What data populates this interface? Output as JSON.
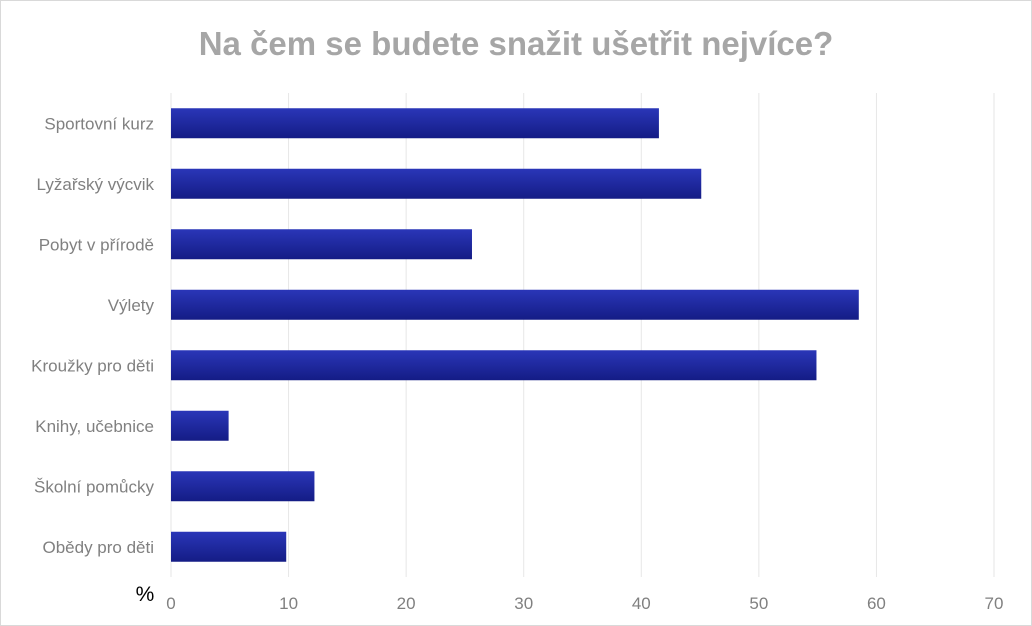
{
  "chart_data": {
    "type": "bar",
    "orientation": "horizontal",
    "title": "Na čem se budete snažit ušetřit nejvíce?",
    "unit_label": "%",
    "categories": [
      "Sportovní kurz",
      "Lyžařský výcvik",
      "Pobyt v přírodě",
      "Výlety",
      "Kroužky pro děti",
      "Knihy, učebnice",
      "Školní pomůcky",
      "Obědy pro děti"
    ],
    "values": [
      41.5,
      45.1,
      25.6,
      58.5,
      54.9,
      4.9,
      12.2,
      9.8
    ],
    "xlim": [
      0,
      70
    ],
    "x_ticks": [
      0,
      10,
      20,
      30,
      40,
      50,
      60,
      70
    ],
    "grid": true,
    "legend": "none",
    "bar_color": "#1e2aa0"
  }
}
